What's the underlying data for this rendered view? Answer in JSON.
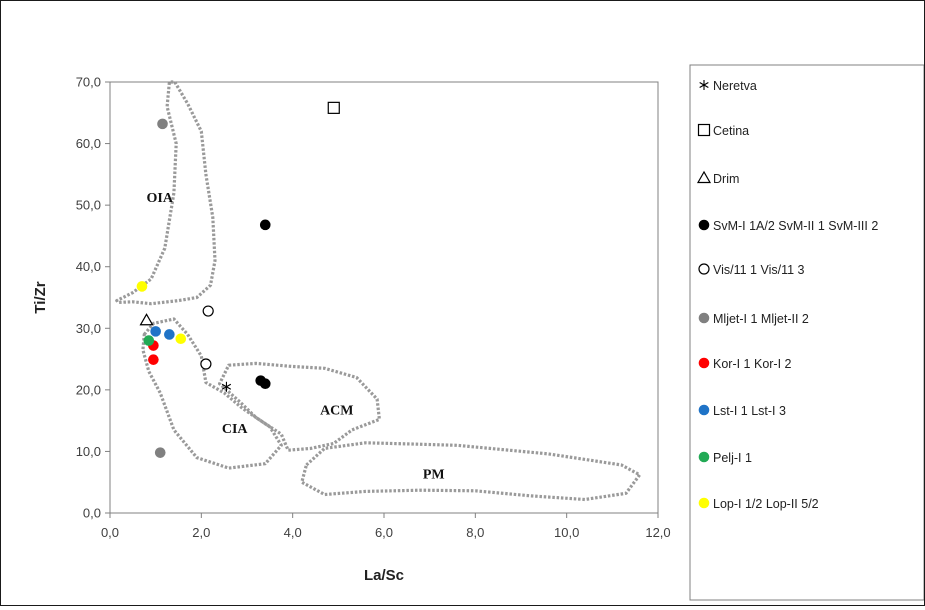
{
  "chart_data": {
    "type": "scatter",
    "xlabel": "La/Sc",
    "ylabel": "Ti/Zr",
    "xlim": [
      0,
      12
    ],
    "ylim": [
      0,
      70
    ],
    "xticks": [
      "0,0",
      "2,0",
      "4,0",
      "6,0",
      "8,0",
      "10,0",
      "12,0"
    ],
    "yticks": [
      "0,0",
      "10,0",
      "20,0",
      "30,0",
      "40,0",
      "50,0",
      "60,0",
      "70,0"
    ],
    "grid": false,
    "legend_position": "right",
    "regions": [
      {
        "label": "OIA",
        "label_at": [
          0.8,
          50.5
        ],
        "outline": [
          [
            1.42,
            70
          ],
          [
            1.7,
            66.5
          ],
          [
            2.0,
            62
          ],
          [
            2.1,
            55
          ],
          [
            2.25,
            48
          ],
          [
            2.3,
            41
          ],
          [
            2.2,
            37
          ],
          [
            1.9,
            35
          ],
          [
            1.5,
            34.5
          ],
          [
            0.9,
            34
          ],
          [
            0.5,
            34.3
          ],
          [
            0.2,
            34.2
          ],
          [
            0.15,
            34.5
          ],
          [
            0.5,
            35.8
          ],
          [
            0.9,
            38
          ],
          [
            1.2,
            43
          ],
          [
            1.4,
            52
          ],
          [
            1.45,
            60
          ],
          [
            1.25,
            66
          ],
          [
            1.3,
            70
          ]
        ]
      },
      {
        "label": "CIA",
        "label_at": [
          2.45,
          13
        ],
        "outline": [
          [
            0.75,
            29
          ],
          [
            0.95,
            30.8
          ],
          [
            1.4,
            31.5
          ],
          [
            1.7,
            29
          ],
          [
            2.0,
            25.5
          ],
          [
            2.1,
            21.2
          ],
          [
            2.5,
            19.5
          ],
          [
            2.9,
            17
          ],
          [
            3.5,
            14
          ],
          [
            3.75,
            11
          ],
          [
            3.4,
            8
          ],
          [
            2.6,
            7.3
          ],
          [
            1.9,
            9
          ],
          [
            1.4,
            13.5
          ],
          [
            1.1,
            19.5
          ],
          [
            0.85,
            23
          ],
          [
            0.72,
            26.5
          ]
        ]
      },
      {
        "label": "ACM",
        "label_at": [
          4.6,
          16
        ],
        "outline": [
          [
            2.6,
            24
          ],
          [
            3.2,
            24.3
          ],
          [
            4.0,
            23.8
          ],
          [
            4.7,
            23.5
          ],
          [
            5.4,
            22
          ],
          [
            5.85,
            18.5
          ],
          [
            5.9,
            15.2
          ],
          [
            5.3,
            13.5
          ],
          [
            4.9,
            11.3
          ],
          [
            4.4,
            10.5
          ],
          [
            3.9,
            10.2
          ],
          [
            3.75,
            12.8
          ],
          [
            3.2,
            15.5
          ],
          [
            2.85,
            18
          ],
          [
            2.4,
            21
          ]
        ]
      },
      {
        "label": "PM",
        "label_at": [
          6.85,
          5.6
        ],
        "outline": [
          [
            4.3,
            7.8
          ],
          [
            4.7,
            10.5
          ],
          [
            5.6,
            11.4
          ],
          [
            6.6,
            11.2
          ],
          [
            7.6,
            11.0
          ],
          [
            8.6,
            10.3
          ],
          [
            9.6,
            9.6
          ],
          [
            10.4,
            8.7
          ],
          [
            11.2,
            7.8
          ],
          [
            11.6,
            6.2
          ],
          [
            11.3,
            3.2
          ],
          [
            10.4,
            2.2
          ],
          [
            9.2,
            2.8
          ],
          [
            8.0,
            3.6
          ],
          [
            6.8,
            3.7
          ],
          [
            5.6,
            3.5
          ],
          [
            4.7,
            3.0
          ],
          [
            4.2,
            5.0
          ]
        ]
      }
    ],
    "series": [
      {
        "name": "Neretva",
        "marker": "asterisk",
        "color": "#000000",
        "points": [
          [
            2.55,
            20.5
          ]
        ]
      },
      {
        "name": "Cetina",
        "marker": "open-square",
        "color": "#000000",
        "points": [
          [
            4.9,
            65.8
          ]
        ]
      },
      {
        "name": "Drim",
        "marker": "open-triangle",
        "color": "#000000",
        "points": [
          [
            0.8,
            31.3
          ]
        ]
      },
      {
        "name": "SvM-I 1A/2 SvM-II 1 SvM-III 2",
        "marker": "filled-circle",
        "color": "#000000",
        "points": [
          [
            3.4,
            46.8
          ],
          [
            3.3,
            21.5
          ],
          [
            3.4,
            21.0
          ]
        ]
      },
      {
        "name": "Vis/11 1 Vis/11 3",
        "marker": "open-circle",
        "color": "#000000",
        "points": [
          [
            2.15,
            32.8
          ],
          [
            2.1,
            24.2
          ]
        ]
      },
      {
        "name": "Mljet-I 1 Mljet-II 2",
        "marker": "filled-circle",
        "color": "#808080",
        "points": [
          [
            1.15,
            63.2
          ],
          [
            1.1,
            9.8
          ]
        ]
      },
      {
        "name": "Kor-I 1 Kor-I 2",
        "marker": "filled-circle",
        "color": "#ff0000",
        "points": [
          [
            0.95,
            27.2
          ],
          [
            0.95,
            24.9
          ]
        ]
      },
      {
        "name": "Lst-I 1 Lst-I 3",
        "marker": "filled-circle",
        "color": "#1f73c7",
        "points": [
          [
            1.0,
            29.5
          ],
          [
            1.3,
            29.0
          ]
        ]
      },
      {
        "name": "Pelj-I 1",
        "marker": "filled-circle",
        "color": "#22aa55",
        "points": [
          [
            0.85,
            28.0
          ]
        ]
      },
      {
        "name": "Lop-I 1/2 Lop-II 5/2",
        "marker": "filled-circle",
        "color": "#ffff00",
        "points": [
          [
            0.7,
            36.8
          ],
          [
            1.55,
            28.3
          ]
        ]
      }
    ]
  }
}
